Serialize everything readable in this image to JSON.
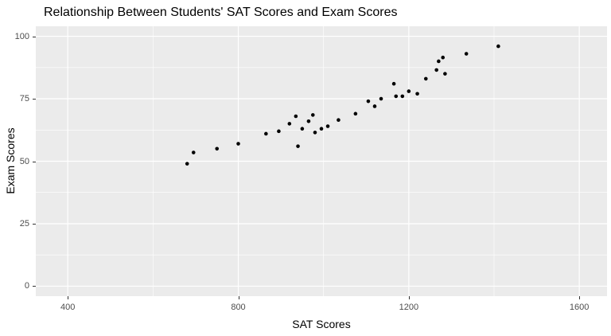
{
  "chart_data": {
    "type": "scatter",
    "title": "Relationship Between Students' SAT Scores and Exam Scores",
    "xlabel": "SAT Scores",
    "ylabel": "Exam Scores",
    "x_ticks": [
      400,
      800,
      1200,
      1600
    ],
    "x_minor_ticks": [
      600,
      1000,
      1400
    ],
    "y_ticks": [
      0,
      25,
      50,
      75,
      100
    ],
    "y_minor_ticks": [
      12.5,
      37.5,
      62.5,
      87.5
    ],
    "xlim": [
      325,
      1665
    ],
    "ylim": [
      -4,
      104
    ],
    "grid": "major-and-minor",
    "legend": "none",
    "panel_bg": "#EBEBEB",
    "grid_color": "#FFFFFF",
    "point_color": "#000000",
    "tick_label_color": "#4D4D4D",
    "points": [
      {
        "x": 680,
        "y": 49
      },
      {
        "x": 695,
        "y": 53.5
      },
      {
        "x": 750,
        "y": 55
      },
      {
        "x": 800,
        "y": 57
      },
      {
        "x": 865,
        "y": 61
      },
      {
        "x": 895,
        "y": 62
      },
      {
        "x": 920,
        "y": 65
      },
      {
        "x": 935,
        "y": 68
      },
      {
        "x": 940,
        "y": 56
      },
      {
        "x": 950,
        "y": 63
      },
      {
        "x": 965,
        "y": 66
      },
      {
        "x": 975,
        "y": 68.5
      },
      {
        "x": 980,
        "y": 61.5
      },
      {
        "x": 995,
        "y": 63
      },
      {
        "x": 1010,
        "y": 64
      },
      {
        "x": 1035,
        "y": 66.5
      },
      {
        "x": 1075,
        "y": 69
      },
      {
        "x": 1105,
        "y": 74
      },
      {
        "x": 1120,
        "y": 72
      },
      {
        "x": 1135,
        "y": 75
      },
      {
        "x": 1165,
        "y": 81
      },
      {
        "x": 1170,
        "y": 76
      },
      {
        "x": 1185,
        "y": 76
      },
      {
        "x": 1200,
        "y": 78
      },
      {
        "x": 1220,
        "y": 77
      },
      {
        "x": 1240,
        "y": 83
      },
      {
        "x": 1265,
        "y": 86.5
      },
      {
        "x": 1270,
        "y": 90
      },
      {
        "x": 1280,
        "y": 91.5
      },
      {
        "x": 1285,
        "y": 85
      },
      {
        "x": 1335,
        "y": 93
      },
      {
        "x": 1410,
        "y": 96
      }
    ]
  }
}
